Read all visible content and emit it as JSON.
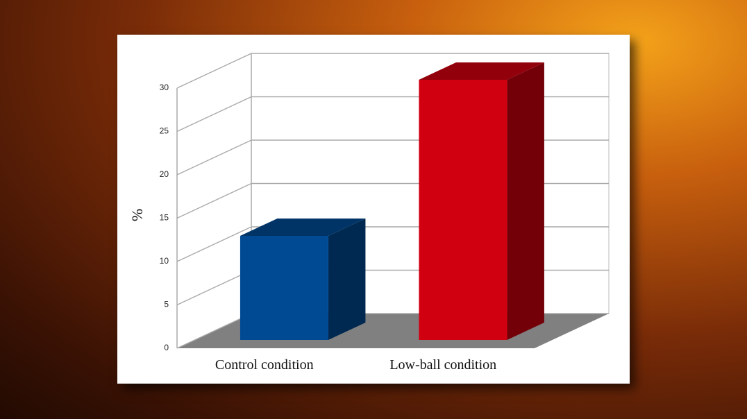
{
  "chart_data": {
    "type": "bar3d",
    "y_label": "%",
    "categories": [
      "Control condition",
      "Low-ball condition"
    ],
    "values": [
      12,
      30
    ],
    "colors": [
      "#004a93",
      "#d10010"
    ],
    "ylim": [
      0,
      30
    ],
    "yticks": [
      0,
      5,
      10,
      15,
      20,
      25,
      30
    ],
    "grid": true
  }
}
